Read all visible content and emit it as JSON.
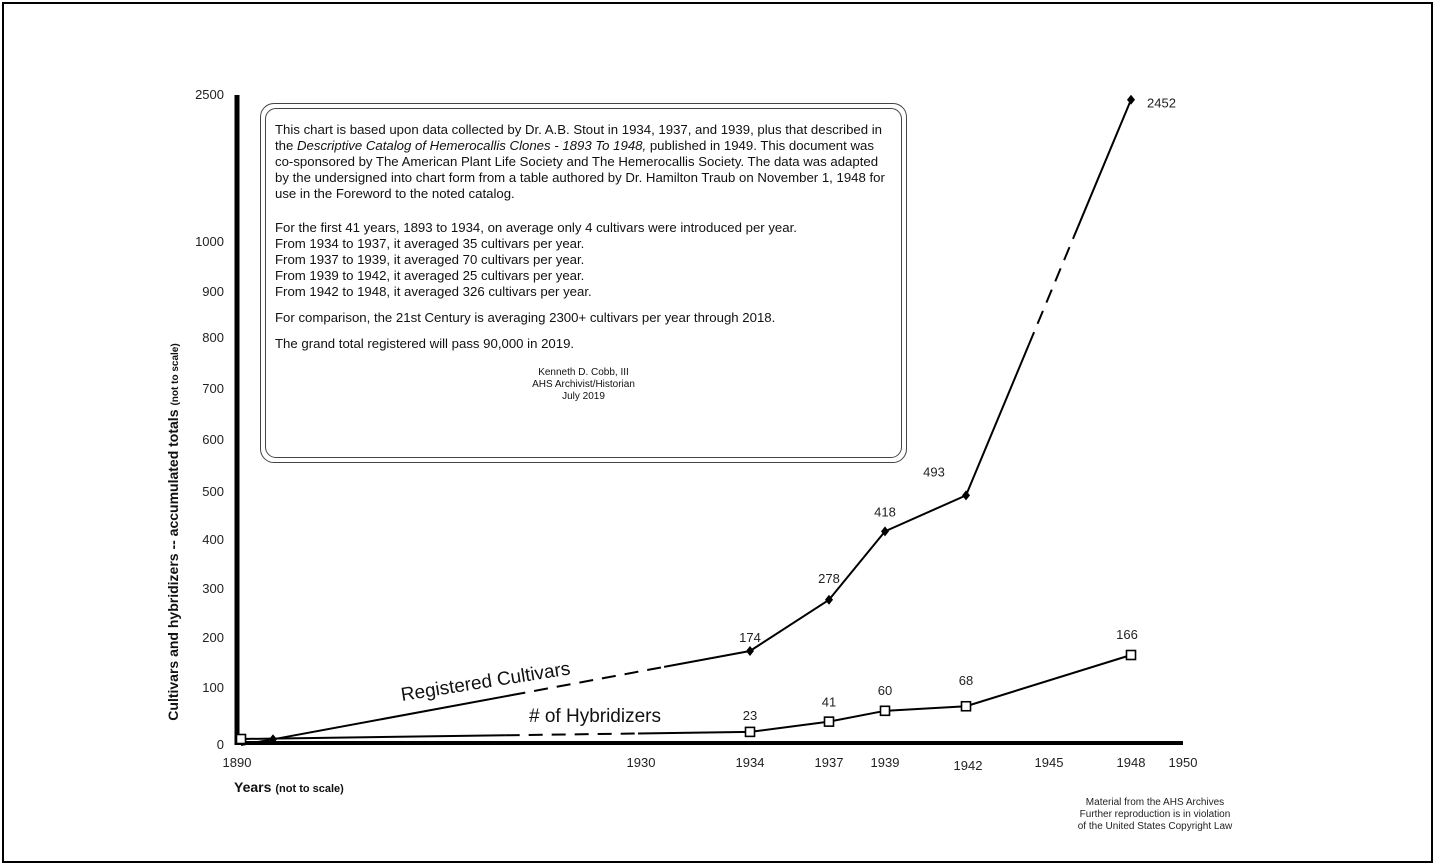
{
  "chart_data": {
    "type": "line",
    "title": "",
    "xlabel": "Years",
    "xlabel_note": "(not to scale)",
    "ylabel": "Cultivars and hybridizers -- accumulated totals",
    "ylabel_note": "(not to scale)",
    "x_ticks": [
      "1890",
      "1930",
      "1934",
      "1937",
      "1939",
      "1942",
      "1945",
      "1948",
      "1950"
    ],
    "y_ticks": [
      "0",
      "100",
      "200",
      "300",
      "400",
      "500",
      "600",
      "700",
      "800",
      "900",
      "1000",
      "2500"
    ],
    "scale": "not to scale",
    "series": [
      {
        "name": "Registered Cultivars",
        "marker": "diamond",
        "points": [
          {
            "x": "1890",
            "y": 0,
            "label": ""
          },
          {
            "x": "1893",
            "y": 10,
            "label": ""
          },
          {
            "x": "1934",
            "y": 174,
            "label": "174"
          },
          {
            "x": "1937",
            "y": 278,
            "label": "278"
          },
          {
            "x": "1939",
            "y": 418,
            "label": "418"
          },
          {
            "x": "1942",
            "y": 493,
            "label": "493"
          },
          {
            "x": "1948",
            "y": 2452,
            "label": "2452"
          }
        ]
      },
      {
        "name": "# of Hybridizers",
        "marker": "square",
        "points": [
          {
            "x": "1890",
            "y": 0,
            "label": ""
          },
          {
            "x": "1934",
            "y": 23,
            "label": "23"
          },
          {
            "x": "1937",
            "y": 41,
            "label": "41"
          },
          {
            "x": "1939",
            "y": 60,
            "label": "60"
          },
          {
            "x": "1942",
            "y": 68,
            "label": "68"
          },
          {
            "x": "1948",
            "y": 166,
            "label": "166"
          }
        ]
      }
    ]
  },
  "note": {
    "p1_a": "This chart is based upon data collected by Dr. A.B. Stout in 1934, 1937, and 1939, plus that described in the ",
    "p1_italic": "Descriptive Catalog of Hemerocallis Clones - 1893 To 1948,",
    "p1_b": " published in 1949. This document was co-sponsored by The American Plant Life Society and The Hemerocallis Society. The data was adapted by the undersigned into chart form from a table authored by Dr. Hamilton Traub on November 1, 1948 for use in the Foreword to the noted catalog.",
    "stats": [
      "For the first 41 years, 1893 to 1934, on average only 4 cultivars were introduced per year.",
      "From 1934 to 1937, it averaged 35 cultivars per year.",
      "From 1937 to 1939, it averaged 70 cultivars per year.",
      "From 1939 to 1942, it averaged 25 cultivars per year.",
      "From 1942 to 1948, it averaged 326 cultivars per year."
    ],
    "comparison": "For comparison, the 21st Century is averaging 2300+ cultivars per year through 2018.",
    "grand_total": "The grand total registered will pass 90,000 in 2019.",
    "signature": [
      "Kenneth D. Cobb, III",
      "AHS Archivist/Historian",
      "July 2019"
    ]
  },
  "footer": [
    "Material from the AHS Archives",
    "Further reproduction is in violation",
    "of the United States Copyright Law"
  ]
}
